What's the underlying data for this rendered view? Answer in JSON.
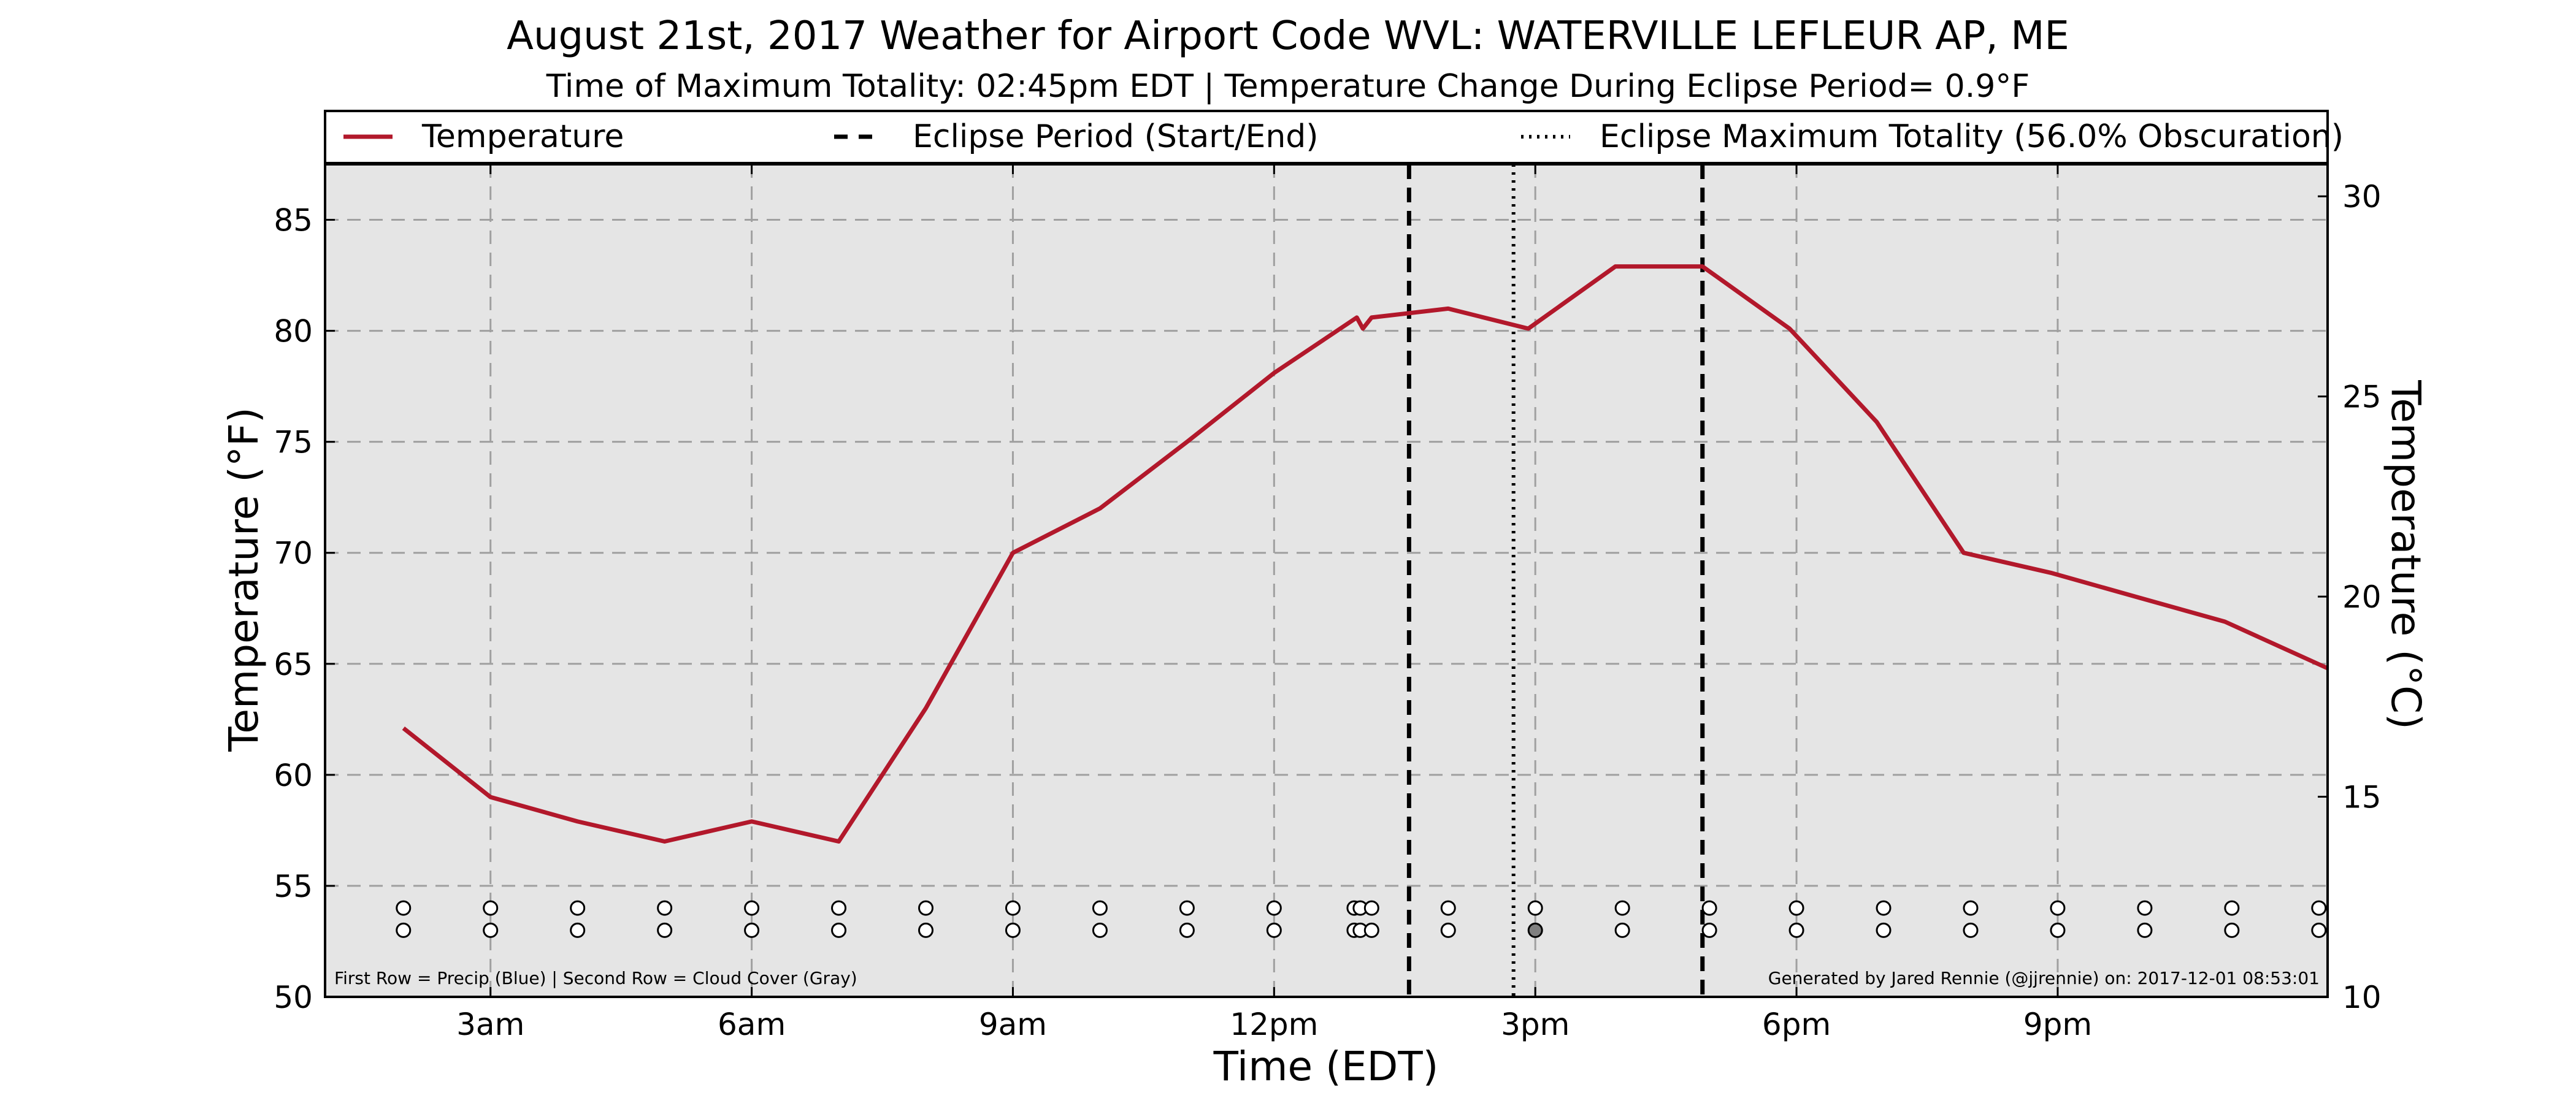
{
  "header": {
    "title": "August 21st, 2017 Weather for Airport Code WVL: WATERVILLE LEFLEUR AP, ME",
    "subtitle": "Time of Maximum Totality: 02:45pm EDT | Temperature Change During Eclipse Period= 0.9°F"
  },
  "legend": {
    "temperature": "Temperature",
    "eclipse_period": "Eclipse Period (Start/End)",
    "eclipse_max": "Eclipse Maximum Totality (56.0% Obscuration)"
  },
  "footnotes": {
    "left": "First Row = Precip (Blue) | Second Row = Cloud Cover (Gray)",
    "right": "Generated by Jared Rennie (@jjrennie) on: 2017-12-01 08:53:01"
  },
  "colors": {
    "temperature_line": "#b2182b",
    "plot_background": "#e5e5e5",
    "eclipse_lines": "#000000",
    "cloud_filled": "#808080"
  },
  "chart_data": {
    "type": "line",
    "title": "August 21st, 2017 Weather for Airport Code WVL: WATERVILLE LEFLEUR AP, ME",
    "xlabel": "Time (EDT)",
    "ylabel": "Temperature (°F)",
    "ylabel_right": "Temperature (°C)",
    "xlim": [
      1.1,
      24.1
    ],
    "ylim": [
      50,
      87.5
    ],
    "ylim_right": [
      10,
      30.8
    ],
    "grid": true,
    "legend_position": "top",
    "x_ticks": [
      {
        "value": 3,
        "label": "3am"
      },
      {
        "value": 6,
        "label": "6am"
      },
      {
        "value": 9,
        "label": "9am"
      },
      {
        "value": 12,
        "label": "12pm"
      },
      {
        "value": 15,
        "label": "3pm"
      },
      {
        "value": 18,
        "label": "6pm"
      },
      {
        "value": 21,
        "label": "9pm"
      }
    ],
    "y_ticks": [
      50,
      55,
      60,
      65,
      70,
      75,
      80,
      85
    ],
    "y_ticks_right": [
      10,
      15,
      20,
      25,
      30
    ],
    "series": [
      {
        "name": "Temperature",
        "x": [
          2.0,
          3.0,
          4.0,
          5.0,
          6.0,
          7.0,
          8.0,
          9.0,
          10.0,
          11.0,
          12.0,
          12.95,
          13.02,
          13.12,
          14.0,
          14.92,
          15.92,
          16.92,
          17.92,
          18.92,
          19.92,
          20.92,
          21.92,
          22.92,
          24.1
        ],
        "y": [
          62.1,
          59.0,
          57.9,
          57.0,
          57.9,
          57.0,
          63.0,
          70.0,
          72.0,
          75.0,
          78.1,
          80.6,
          80.1,
          80.6,
          81.0,
          80.1,
          82.9,
          82.9,
          80.1,
          75.9,
          70.0,
          69.1,
          68.0,
          66.9,
          64.8
        ]
      }
    ],
    "eclipse_start": 13.55,
    "eclipse_end": 16.92,
    "eclipse_max": 14.75,
    "markers": {
      "x": [
        2.0,
        3.0,
        4.0,
        5.0,
        6.0,
        7.0,
        8.0,
        9.0,
        10.0,
        11.0,
        12.0,
        12.92,
        12.99,
        13.12,
        14.0,
        15.0,
        16.0,
        17.0,
        18.0,
        19.0,
        20.0,
        21.0,
        22.0,
        23.0,
        24.0
      ],
      "precip_y": 54.0,
      "cloud_y": 53.0,
      "cloud_filled_index": 15
    }
  }
}
